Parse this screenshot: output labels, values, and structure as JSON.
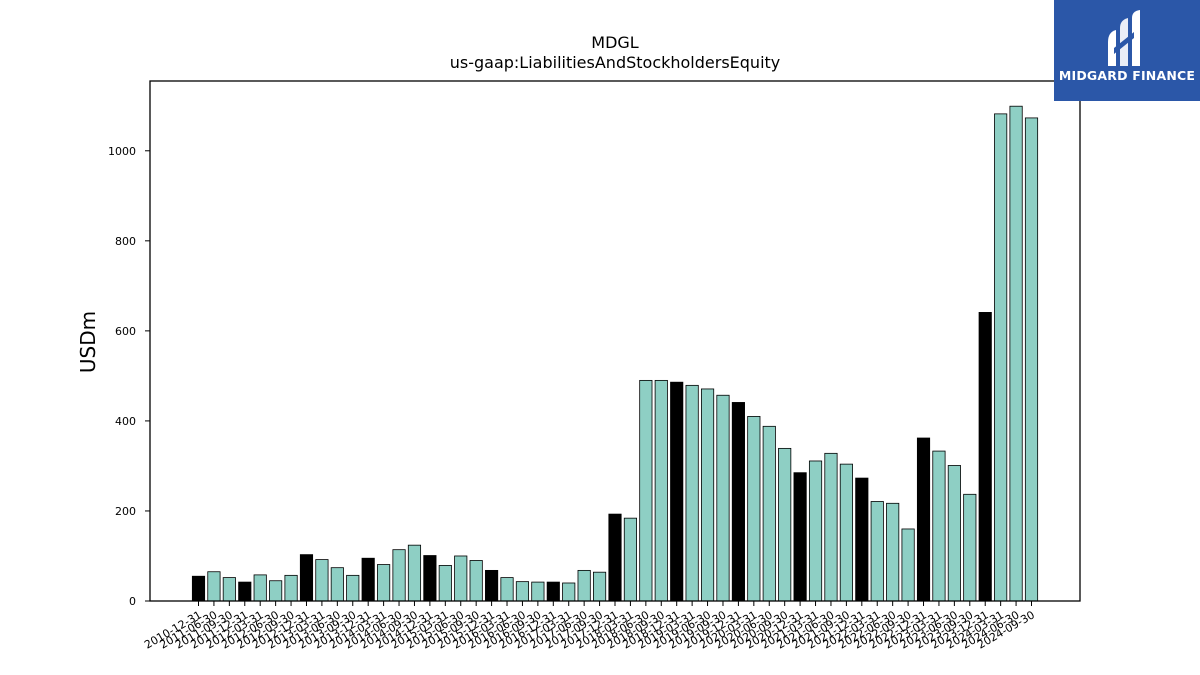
{
  "logo": {
    "text": "MIDGARD FINANCE",
    "background": "#2b57a8",
    "icon": "midgard-logo-icon"
  },
  "chart_data": {
    "type": "bar",
    "title": "MDGL",
    "subtitle": "us-gaap:LiabilitiesAndStockholdersEquity",
    "ylabel": "USDm",
    "xlabel": "",
    "ylim": [
      0,
      1155
    ],
    "yticks": [
      0,
      200,
      400,
      600,
      800,
      1000
    ],
    "grid": false,
    "colors": {
      "annual": "#000000",
      "quarterly": "#8ecfc4",
      "edge": "#000000"
    },
    "categories": [
      "2010-12-31",
      "2011-06-30",
      "2011-09-30",
      "2011-12-31",
      "2012-03-31",
      "2012-06-30",
      "2012-09-30",
      "2012-12-31",
      "2013-03-31",
      "2013-06-30",
      "2013-09-30",
      "2013-12-31",
      "2014-03-31",
      "2014-06-30",
      "2014-09-30",
      "2014-12-31",
      "2015-03-31",
      "2015-06-30",
      "2015-09-30",
      "2015-12-31",
      "2016-03-31",
      "2016-06-30",
      "2016-09-30",
      "2016-12-31",
      "2017-03-31",
      "2017-06-30",
      "2017-09-30",
      "2017-12-31",
      "2018-03-31",
      "2018-06-30",
      "2018-09-30",
      "2018-12-31",
      "2019-03-31",
      "2019-06-30",
      "2019-09-30",
      "2019-12-31",
      "2020-03-31",
      "2020-06-30",
      "2020-09-30",
      "2020-12-31",
      "2021-03-31",
      "2021-06-30",
      "2021-09-30",
      "2021-12-31",
      "2022-03-31",
      "2022-06-30",
      "2022-09-30",
      "2022-12-31",
      "2023-03-31",
      "2023-06-30",
      "2023-09-30",
      "2023-12-31",
      "2024-03-31",
      "2024-06-30",
      "2024-09-30"
    ],
    "values": [
      55,
      65,
      52,
      42,
      58,
      45,
      57,
      103,
      92,
      74,
      57,
      95,
      81,
      114,
      124,
      101,
      79,
      100,
      90,
      68,
      52,
      43,
      42,
      42,
      40,
      68,
      64,
      193,
      184,
      490,
      490,
      486,
      479,
      471,
      457,
      441,
      410,
      388,
      339,
      285,
      311,
      328,
      304,
      273,
      221,
      217,
      160,
      362,
      333,
      301,
      237,
      641,
      1082,
      1099,
      1073
    ],
    "annual": [
      true,
      false,
      false,
      true,
      false,
      false,
      false,
      true,
      false,
      false,
      false,
      true,
      false,
      false,
      false,
      true,
      false,
      false,
      false,
      true,
      false,
      false,
      false,
      true,
      false,
      false,
      false,
      true,
      false,
      false,
      false,
      true,
      false,
      false,
      false,
      true,
      false,
      false,
      false,
      true,
      false,
      false,
      false,
      true,
      false,
      false,
      false,
      true,
      false,
      false,
      false,
      true,
      false,
      false,
      false
    ]
  }
}
